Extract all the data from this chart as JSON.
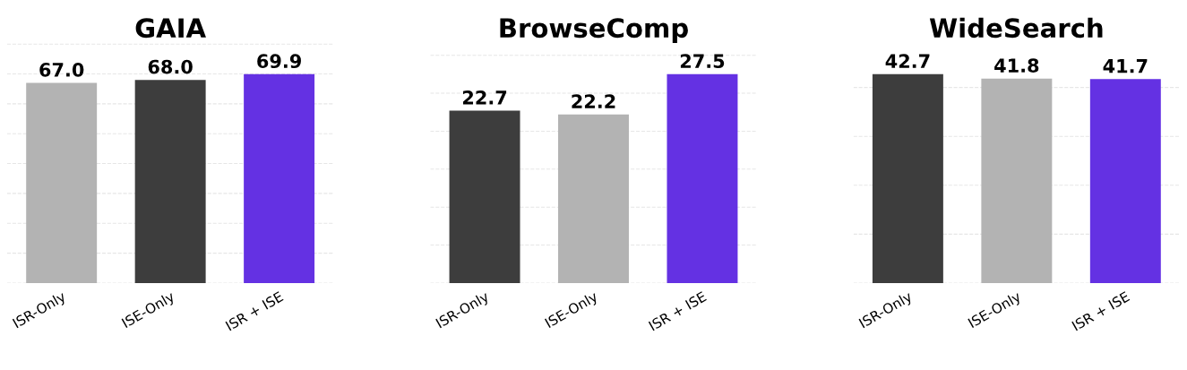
{
  "chart_data": [
    {
      "type": "bar",
      "title": "GAIA",
      "categories": [
        "ISR-Only",
        "ISE-Only",
        "ISR + ISE"
      ],
      "values": [
        67.0,
        68.0,
        69.9
      ],
      "value_labels": [
        "67.0",
        "68.0",
        "69.9"
      ],
      "colors": [
        "#b3b3b3",
        "#3d3d3d",
        "#6431e3"
      ],
      "tick_labels": "x",
      "grid": "y"
    },
    {
      "type": "bar",
      "title": "BrowseComp",
      "categories": [
        "ISR-Only",
        "ISE-Only",
        "ISR + ISE"
      ],
      "values": [
        22.7,
        22.2,
        27.5
      ],
      "value_labels": [
        "22.7",
        "22.2",
        "27.5"
      ],
      "colors": [
        "#3d3d3d",
        "#b3b3b3",
        "#6431e3"
      ],
      "tick_labels": "x",
      "grid": "y"
    },
    {
      "type": "bar",
      "title": "WideSearch",
      "categories": [
        "ISR-Only",
        "ISE-Only",
        "ISR + ISE"
      ],
      "values": [
        42.7,
        41.8,
        41.7
      ],
      "value_labels": [
        "42.7",
        "41.8",
        "41.7"
      ],
      "colors": [
        "#3d3d3d",
        "#b3b3b3",
        "#6431e3"
      ],
      "tick_labels": "x",
      "grid": "y"
    }
  ]
}
